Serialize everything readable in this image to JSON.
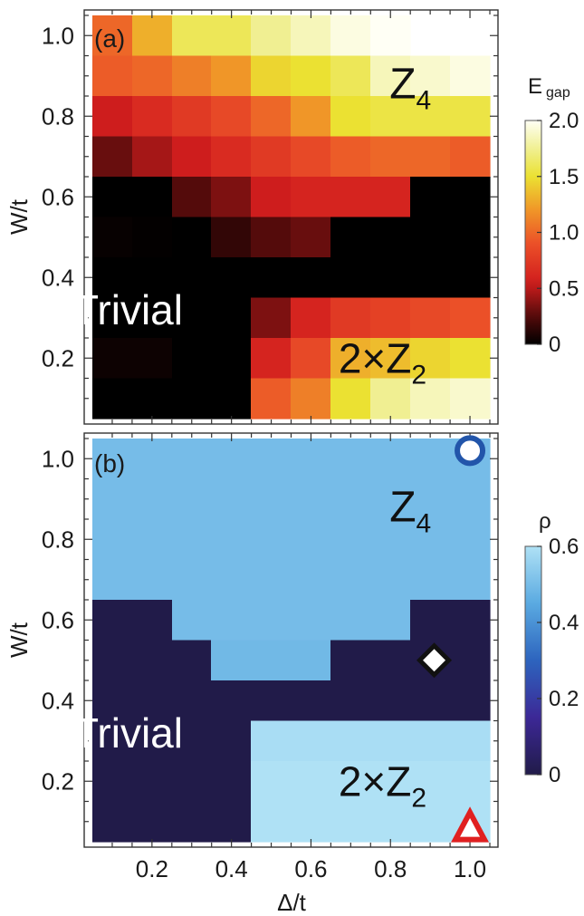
{
  "chart_data": [
    {
      "panel": "(a)",
      "type": "heatmap",
      "xlabel": "Δ/t",
      "ylabel": "W/t",
      "xlim": [
        0.05,
        1.05
      ],
      "ylim": [
        0.05,
        1.05
      ],
      "x_ticks": [
        "0.2",
        "0.4",
        "0.6",
        "0.8",
        "1.0"
      ],
      "y_ticks": [
        "0.2",
        "0.4",
        "0.6",
        "0.8",
        "1.0"
      ],
      "x_centers": [
        0.1,
        0.2,
        0.3,
        0.4,
        0.5,
        0.6,
        0.7,
        0.8,
        0.9,
        1.0
      ],
      "y_centers": [
        1.0,
        0.9,
        0.8,
        0.7,
        0.6,
        0.5,
        0.4,
        0.3,
        0.2,
        0.1
      ],
      "colorbar": {
        "title": "E",
        "title_sub": "gap",
        "range": [
          0,
          2.0
        ],
        "tick_values": [
          0,
          0.5,
          1.0,
          1.5,
          2.0
        ],
        "ticks": [
          "0",
          "0.5",
          "1.0",
          "1.5",
          "2.0"
        ],
        "colormap": "heat"
      },
      "values": [
        [
          1.0,
          1.3,
          1.6,
          1.6,
          1.75,
          1.85,
          1.95,
          2.0,
          null,
          null
        ],
        [
          0.95,
          1.0,
          1.1,
          1.2,
          1.45,
          1.5,
          1.6,
          1.85,
          1.9,
          1.95
        ],
        [
          0.55,
          0.65,
          0.75,
          0.85,
          1.0,
          1.2,
          1.5,
          1.55,
          1.55,
          1.55
        ],
        [
          0.3,
          0.45,
          0.55,
          0.65,
          0.75,
          0.85,
          0.95,
          1.0,
          1.0,
          0.95
        ],
        [
          0.0,
          0.0,
          0.25,
          0.35,
          0.55,
          0.6,
          0.6,
          0.6,
          0.0,
          0.0
        ],
        [
          0.02,
          0.01,
          0.0,
          0.15,
          0.25,
          0.3,
          0.0,
          0.0,
          0.0,
          0.0
        ],
        [
          0.0,
          0.0,
          0.0,
          0.0,
          0.0,
          0.0,
          0.0,
          0.0,
          0.0,
          0.0
        ],
        [
          0.0,
          0.0,
          0.0,
          0.0,
          0.35,
          0.6,
          0.75,
          0.8,
          0.85,
          0.9
        ],
        [
          0.04,
          0.04,
          0.0,
          0.0,
          0.6,
          0.85,
          1.3,
          1.35,
          1.45,
          1.5
        ],
        [
          0.0,
          0.0,
          0.0,
          0.0,
          0.95,
          1.1,
          1.5,
          1.75,
          1.85,
          1.9
        ]
      ],
      "annotations": [
        {
          "text": "Z",
          "sub": "4",
          "x": 0.85,
          "y": 0.88,
          "color": "#111111"
        },
        {
          "text": "Trivial",
          "x": 0.14,
          "y": 0.32,
          "color": "#ffffff"
        },
        {
          "text": "2×Z",
          "sub": "2",
          "x": 0.78,
          "y": 0.2,
          "color": "#111111"
        }
      ]
    },
    {
      "panel": "(b)",
      "type": "heatmap",
      "xlabel": "Δ/t",
      "ylabel": "W/t",
      "xlim": [
        0.05,
        1.05
      ],
      "ylim": [
        0.05,
        1.05
      ],
      "x_ticks": [
        "0.2",
        "0.4",
        "0.6",
        "0.8",
        "1.0"
      ],
      "y_ticks": [
        "0.2",
        "0.4",
        "0.6",
        "0.8",
        "1.0"
      ],
      "x_centers": [
        0.1,
        0.2,
        0.3,
        0.4,
        0.5,
        0.6,
        0.7,
        0.8,
        0.9,
        1.0
      ],
      "y_centers": [
        1.0,
        0.9,
        0.8,
        0.7,
        0.6,
        0.5,
        0.4,
        0.3,
        0.2,
        0.1
      ],
      "colorbar": {
        "title": "ρ",
        "range": [
          0,
          0.6
        ],
        "tick_values": [
          0,
          0.2,
          0.4,
          0.6
        ],
        "ticks": [
          "0",
          "0.2",
          "0.4",
          "0.6"
        ],
        "colormap": "blue"
      },
      "values": [
        [
          0.5,
          0.5,
          0.5,
          0.5,
          0.5,
          0.5,
          0.5,
          0.5,
          0.5,
          0.5
        ],
        [
          0.5,
          0.5,
          0.5,
          0.5,
          0.5,
          0.5,
          0.5,
          0.5,
          0.5,
          0.5
        ],
        [
          0.5,
          0.5,
          0.5,
          0.5,
          0.5,
          0.5,
          0.5,
          0.5,
          0.5,
          0.5
        ],
        [
          0.5,
          0.5,
          0.5,
          0.5,
          0.5,
          0.5,
          0.5,
          0.5,
          0.5,
          0.5
        ],
        [
          0.0,
          0.0,
          0.5,
          0.5,
          0.5,
          0.5,
          0.5,
          0.5,
          0.0,
          0.0
        ],
        [
          0.0,
          0.0,
          0.0,
          0.49,
          0.49,
          0.49,
          0.0,
          0.0,
          0.0,
          0.0
        ],
        [
          0.0,
          0.0,
          0.0,
          0.0,
          0.0,
          0.0,
          0.0,
          0.0,
          0.0,
          0.0
        ],
        [
          0.0,
          0.0,
          0.0,
          0.0,
          0.59,
          0.59,
          0.59,
          0.59,
          0.59,
          0.59
        ],
        [
          0.0,
          0.0,
          0.0,
          0.0,
          0.6,
          0.6,
          0.6,
          0.6,
          0.6,
          0.6
        ],
        [
          0.0,
          0.0,
          0.0,
          0.0,
          0.6,
          0.6,
          0.6,
          0.6,
          0.6,
          0.6
        ]
      ],
      "annotations": [
        {
          "text": "Z",
          "sub": "4",
          "x": 0.85,
          "y": 0.88,
          "color": "#111111"
        },
        {
          "text": "Trivial",
          "x": 0.14,
          "y": 0.32,
          "color": "#ffffff"
        },
        {
          "text": "2×Z",
          "sub": "2",
          "x": 0.78,
          "y": 0.2,
          "color": "#111111"
        }
      ],
      "markers": [
        {
          "shape": "circle",
          "x": 1.0,
          "y": 1.02,
          "color": "#2255aa"
        },
        {
          "shape": "diamond",
          "x": 0.91,
          "y": 0.5,
          "color": "#111111"
        },
        {
          "shape": "triangle",
          "x": 1.0,
          "y": 0.08,
          "color": "#e02020"
        }
      ]
    }
  ]
}
